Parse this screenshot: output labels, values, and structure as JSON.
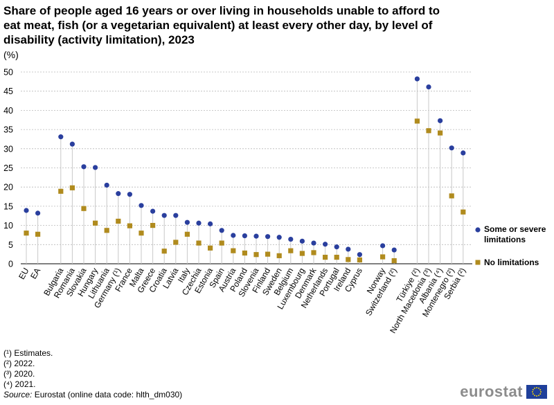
{
  "title": "Share of people aged 16 years or over living in households unable to afford to eat meat, fish (or a vegetarian equivalent) at least every other day, by level of disability (activity limitation), 2023",
  "unit_label": "(%)",
  "colors": {
    "severe": "#2a3f9e",
    "none": "#b08b1e",
    "grid": "#b8b8b8",
    "stem": "#c8c8c8"
  },
  "chart_data": {
    "type": "scatter",
    "title": "Share of people aged 16 years or over living in households unable to afford to eat meat, fish (or a vegetarian equivalent) at least every other day, by level of disability (activity limitation), 2023",
    "ylabel": "(%)",
    "ylim": [
      0,
      50
    ],
    "yticks": [
      0,
      5,
      10,
      15,
      20,
      25,
      30,
      35,
      40,
      45,
      50
    ],
    "grid": true,
    "legend_position": "right",
    "groups": [
      [
        "EU",
        "EA"
      ],
      [
        "Bulgaria",
        "Romania",
        "Slovakia",
        "Hungary",
        "Lithuania",
        "Germany (¹)",
        "France",
        "Malta",
        "Greece",
        "Croatia",
        "Latvia",
        "Italy",
        "Czechia",
        "Estonia",
        "Spain",
        "Austria",
        "Poland",
        "Slovenia",
        "Finland",
        "Sweden",
        "Belgium",
        "Luxembourg",
        "Denmark",
        "Netherlands",
        "Portugal",
        "Ireland",
        "Cyprus"
      ],
      [
        "Norway",
        "Switzerland (²)"
      ],
      [
        "Türkiye (²)",
        "North Macedonia (³)",
        "Albania (⁴)",
        "Montenegro (²)",
        "Serbia (²)"
      ]
    ],
    "categories": [
      "EU",
      "EA",
      "Bulgaria",
      "Romania",
      "Slovakia",
      "Hungary",
      "Lithuania",
      "Germany (¹)",
      "France",
      "Malta",
      "Greece",
      "Croatia",
      "Latvia",
      "Italy",
      "Czechia",
      "Estonia",
      "Spain",
      "Austria",
      "Poland",
      "Slovenia",
      "Finland",
      "Sweden",
      "Belgium",
      "Luxembourg",
      "Denmark",
      "Netherlands",
      "Portugal",
      "Ireland",
      "Cyprus",
      "Norway",
      "Switzerland (²)",
      "Türkiye (²)",
      "North Macedonia (³)",
      "Albania (⁴)",
      "Montenegro (²)",
      "Serbia (²)"
    ],
    "series": [
      {
        "name": "Some or severe limitations",
        "marker": "circle",
        "values": [
          13.9,
          13.2,
          33.1,
          31.2,
          25.3,
          25.1,
          20.5,
          18.3,
          18.1,
          15.2,
          13.7,
          12.6,
          12.6,
          10.8,
          10.6,
          10.4,
          8.7,
          7.4,
          7.3,
          7.2,
          7.1,
          6.9,
          6.4,
          5.9,
          5.4,
          5.1,
          4.4,
          3.8,
          2.4,
          4.7,
          3.6,
          48.2,
          46.1,
          37.3,
          30.2,
          28.9
        ]
      },
      {
        "name": "No limitations",
        "marker": "square",
        "values": [
          8.0,
          7.7,
          18.9,
          19.8,
          14.4,
          10.6,
          8.7,
          11.1,
          9.9,
          8.0,
          10.0,
          3.3,
          5.6,
          7.7,
          5.4,
          4.1,
          5.4,
          3.4,
          2.8,
          2.4,
          2.5,
          2.1,
          3.4,
          2.7,
          2.9,
          1.7,
          1.7,
          1.1,
          1.0,
          1.8,
          0.8,
          37.2,
          34.7,
          34.1,
          17.7,
          13.5
        ]
      }
    ]
  },
  "legend": {
    "severe_label": "Some or severe limitations",
    "none_label": "No limitations"
  },
  "footnotes": [
    "(¹) Estimates.",
    "(²) 2022.",
    "(³) 2020.",
    "(⁴) 2021."
  ],
  "source": {
    "prefix": "Source:",
    "text": " Eurostat (online data code: hlth_dm030)"
  },
  "logo": {
    "text": "eurostat"
  }
}
